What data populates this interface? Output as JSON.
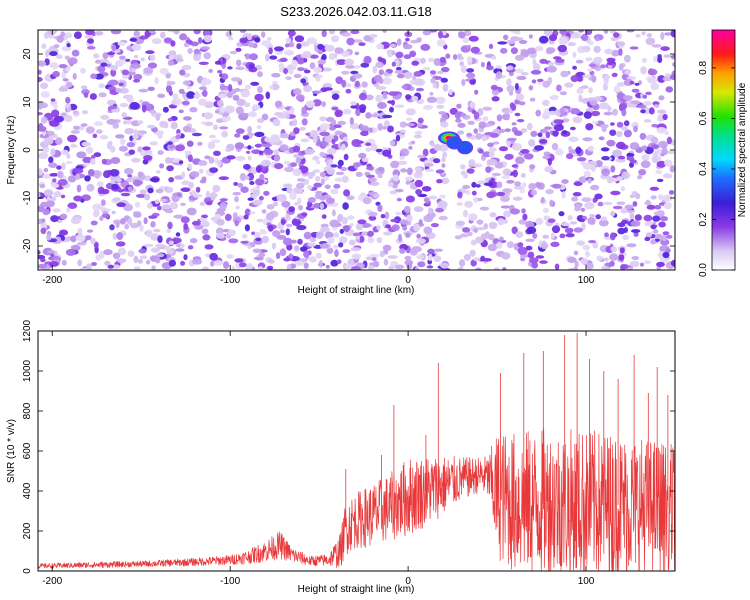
{
  "figure_title": "S233.2026.042.03.11.G18",
  "chart_data": [
    {
      "type": "heatmap",
      "name": "lomb-scargle-spectrogram",
      "xlabel": "Height of straight line (km)",
      "ylabel": "Frequency (Hz)",
      "xlim": [
        -208,
        150
      ],
      "ylim": [
        -25,
        25
      ],
      "x_ticks": [
        -200,
        -100,
        0,
        100
      ],
      "x_tick_labels": [
        "-200",
        "-100",
        "0",
        "100"
      ],
      "y_ticks": [
        -20,
        -10,
        0,
        10,
        20
      ],
      "y_tick_labels": [
        "-20",
        "-10",
        "0",
        "10",
        "20"
      ],
      "grid": false,
      "background_noise": "random low-amplitude purple speckle (normalized amplitude 0.05-0.25) across full field",
      "quiet_band_x": [
        22,
        28
      ],
      "peaks": [
        {
          "x": 23,
          "y": 2.5,
          "amplitude": 1.0
        },
        {
          "x": 26,
          "y": 1.5,
          "amplitude": 0.45
        },
        {
          "x": 32,
          "y": 0.5,
          "amplitude": 0.4
        }
      ],
      "colorbar": {
        "label": "Normalized spectral amplitude",
        "range": [
          0.0,
          0.95
        ],
        "ticks": [
          0.0,
          0.2,
          0.4,
          0.6,
          0.8
        ],
        "tick_labels": [
          "0.0",
          "0.2",
          "0.4",
          "0.6",
          "0.8"
        ],
        "colormap": "rainbow (white → purple → blue → cyan → green → yellow → orange → red → magenta)"
      }
    },
    {
      "type": "line",
      "name": "snr-profile",
      "xlabel": "Height of straight line (km)",
      "ylabel": "SNR (10 * v/v)",
      "xlim": [
        -208,
        150
      ],
      "ylim": [
        0,
        1200
      ],
      "x_ticks": [
        -200,
        -100,
        0,
        100
      ],
      "x_tick_labels": [
        "-200",
        "-100",
        "0",
        "100"
      ],
      "y_ticks": [
        0,
        200,
        400,
        600,
        800,
        1000,
        1200
      ],
      "y_tick_labels": [
        "0",
        "200",
        "400",
        "600",
        "800",
        "1000",
        "1200"
      ],
      "grid": false,
      "series": [
        {
          "name": "SNR",
          "color": "#e8383a",
          "envelope": {
            "x": [
              -208,
              -180,
              -150,
              -120,
              -100,
              -90,
              -80,
              -72,
              -65,
              -55,
              -45,
              -38,
              -35,
              -30,
              -20,
              -10,
              0,
              10,
              20,
              30,
              40,
              45,
              50,
              60,
              80,
              100,
              120,
              140,
              150
            ],
            "mean": [
              25,
              30,
              35,
              45,
              55,
              70,
              100,
              130,
              80,
              50,
              55,
              100,
              220,
              250,
              280,
              320,
              370,
              400,
              430,
              460,
              480,
              470,
              380,
              340,
              340,
              330,
              330,
              320,
              310
            ],
            "amp": [
              12,
              15,
              15,
              20,
              25,
              35,
              55,
              70,
              40,
              25,
              30,
              90,
              140,
              140,
              160,
              170,
              200,
              180,
              150,
              110,
              90,
              110,
              320,
              360,
              380,
              380,
              360,
              340,
              330
            ]
          },
          "spikes": [
            {
              "x": -35,
              "y": 510
            },
            {
              "x": -15,
              "y": 580
            },
            {
              "x": -8,
              "y": 830
            },
            {
              "x": 10,
              "y": 680
            },
            {
              "x": 17,
              "y": 1040
            },
            {
              "x": 52,
              "y": 990
            },
            {
              "x": 65,
              "y": 1090
            },
            {
              "x": 76,
              "y": 1100
            },
            {
              "x": 88,
              "y": 1180
            },
            {
              "x": 95,
              "y": 1190
            },
            {
              "x": 102,
              "y": 1060
            },
            {
              "x": 110,
              "y": 1000
            },
            {
              "x": 118,
              "y": 960
            },
            {
              "x": 127,
              "y": 1080
            },
            {
              "x": 135,
              "y": 890
            },
            {
              "x": 140,
              "y": 1020
            },
            {
              "x": 146,
              "y": 880
            }
          ]
        }
      ]
    }
  ]
}
